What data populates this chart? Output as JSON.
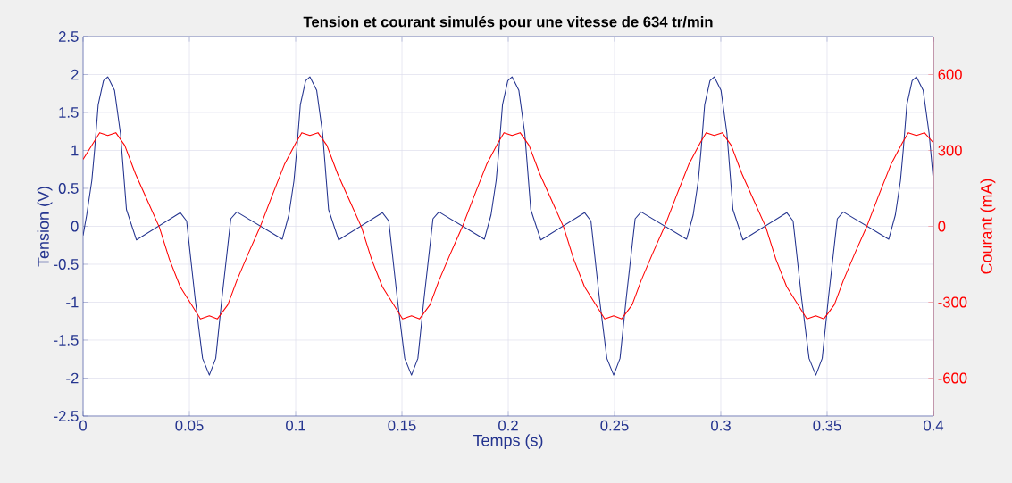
{
  "chart_data": {
    "type": "line",
    "title": "Tension et courant simulés pour une vitesse de 634 tr/min",
    "xlabel": "Temps (s)",
    "ylabel": "Tension (V)",
    "y2label": "Courant (mA)",
    "xlim": [
      0,
      0.4
    ],
    "xticks": [
      0,
      0.05,
      0.1,
      0.15,
      0.2,
      0.25,
      0.3,
      0.35,
      0.4
    ],
    "ylim": [
      -2.5,
      2.5
    ],
    "yticks": [
      -2.5,
      -2,
      -1.5,
      -1,
      -0.5,
      0,
      0.5,
      1,
      1.5,
      2,
      2.5
    ],
    "y2lim": [
      -750,
      750
    ],
    "y2ticks": [
      -600,
      -300,
      0,
      300,
      600
    ],
    "grid": true,
    "series": [
      {
        "color": "#24348f",
        "x": [
          0,
          0.0017,
          0.0041,
          0.0054,
          0.0071,
          0.0096,
          0.0116,
          0.0148,
          0.0176,
          0.0204,
          0.0251,
          0.0457,
          0.0487,
          0.0527,
          0.0562,
          0.0594,
          0.0624,
          0.0653,
          0.0695,
          0.0723,
          0.0937,
          0.0968,
          0.0992,
          0.1005,
          0.1022,
          0.1047,
          0.1067,
          0.1099,
          0.1127,
          0.1155,
          0.1202,
          0.1408,
          0.1438,
          0.1478,
          0.1513,
          0.1545,
          0.1575,
          0.1604,
          0.1646,
          0.1674,
          0.1888,
          0.1919,
          0.1943,
          0.1956,
          0.1973,
          0.1998,
          0.2018,
          0.205,
          0.2078,
          0.2106,
          0.2153,
          0.2359,
          0.2389,
          0.2429,
          0.2464,
          0.2496,
          0.2526,
          0.2555,
          0.2597,
          0.2625,
          0.2839,
          0.287,
          0.2894,
          0.2907,
          0.2924,
          0.2949,
          0.2969,
          0.3001,
          0.3029,
          0.3057,
          0.3104,
          0.331,
          0.334,
          0.338,
          0.3415,
          0.3447,
          0.3477,
          0.3506,
          0.3548,
          0.3576,
          0.379,
          0.3821,
          0.3845,
          0.3858,
          0.3875,
          0.39,
          0.392,
          0.3952,
          0.398,
          0.4
        ],
        "values": [
          -0.12,
          0.15,
          0.6,
          1.0,
          1.6,
          1.92,
          1.97,
          1.79,
          1.22,
          0.22,
          -0.18,
          0.18,
          0.07,
          -0.95,
          -1.74,
          -1.96,
          -1.74,
          -0.95,
          0.1,
          0.19,
          -0.17,
          0.15,
          0.6,
          1.0,
          1.6,
          1.92,
          1.97,
          1.79,
          1.22,
          0.22,
          -0.18,
          0.18,
          0.07,
          -0.95,
          -1.74,
          -1.96,
          -1.74,
          -0.95,
          0.1,
          0.19,
          -0.17,
          0.15,
          0.6,
          1.0,
          1.6,
          1.92,
          1.97,
          1.79,
          1.22,
          0.22,
          -0.18,
          0.18,
          0.07,
          -0.95,
          -1.74,
          -1.96,
          -1.74,
          -0.95,
          0.1,
          0.19,
          -0.17,
          0.15,
          0.6,
          1.0,
          1.6,
          1.92,
          1.97,
          1.79,
          1.22,
          0.22,
          -0.18,
          0.18,
          0.07,
          -0.95,
          -1.74,
          -1.96,
          -1.74,
          -0.95,
          0.1,
          0.19,
          -0.17,
          0.15,
          0.6,
          1.0,
          1.6,
          1.92,
          1.97,
          1.79,
          1.22,
          0.6
        ]
      },
      {
        "color": "#ff0000",
        "axis": "y2",
        "x": [
          0,
          0.0078,
          0.0116,
          0.0154,
          0.0196,
          0.0246,
          0.0301,
          0.0359,
          0.0406,
          0.0457,
          0.0552,
          0.0594,
          0.0632,
          0.0681,
          0.0723,
          0.0776,
          0.0835,
          0.0891,
          0.0947,
          0.1001,
          0.1029,
          0.1067,
          0.1105,
          0.1147,
          0.1197,
          0.1252,
          0.131,
          0.1357,
          0.1408,
          0.1503,
          0.1545,
          0.1583,
          0.1632,
          0.1674,
          0.1727,
          0.1786,
          0.1842,
          0.1898,
          0.1952,
          0.198,
          0.2018,
          0.2056,
          0.2098,
          0.2148,
          0.2203,
          0.2261,
          0.2308,
          0.2359,
          0.2454,
          0.2496,
          0.2534,
          0.2583,
          0.2625,
          0.2678,
          0.2737,
          0.2793,
          0.2849,
          0.2903,
          0.2931,
          0.2969,
          0.3007,
          0.3049,
          0.3099,
          0.3154,
          0.3212,
          0.3259,
          0.331,
          0.3405,
          0.3447,
          0.3485,
          0.3534,
          0.3576,
          0.3629,
          0.3688,
          0.3744,
          0.38,
          0.3854,
          0.3882,
          0.392,
          0.3958,
          0.4
        ],
        "values": [
          265,
          370,
          359,
          370,
          320,
          208,
          105,
          -4,
          -130,
          -239,
          -366,
          -354,
          -366,
          -310,
          -215,
          -110,
          2,
          125,
          244,
          330,
          370,
          359,
          370,
          320,
          208,
          105,
          -4,
          -130,
          -239,
          -366,
          -354,
          -366,
          -310,
          -215,
          -110,
          2,
          125,
          244,
          330,
          370,
          359,
          370,
          320,
          208,
          105,
          -4,
          -130,
          -239,
          -366,
          -354,
          -366,
          -310,
          -215,
          -110,
          2,
          125,
          244,
          330,
          370,
          359,
          370,
          320,
          208,
          105,
          -4,
          -130,
          -239,
          -366,
          -354,
          -366,
          -310,
          -215,
          -110,
          2,
          125,
          244,
          330,
          370,
          359,
          370,
          330
        ]
      }
    ]
  }
}
